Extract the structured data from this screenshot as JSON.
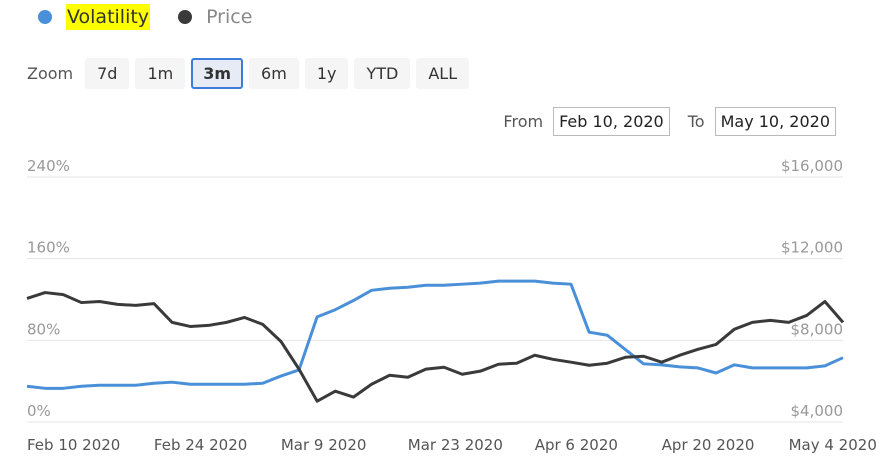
{
  "chart_data": {
    "type": "line",
    "x": [
      "2020-02-10",
      "2020-02-12",
      "2020-02-14",
      "2020-02-16",
      "2020-02-18",
      "2020-02-20",
      "2020-02-22",
      "2020-02-24",
      "2020-02-26",
      "2020-02-28",
      "2020-03-01",
      "2020-03-03",
      "2020-03-05",
      "2020-03-07",
      "2020-03-09",
      "2020-03-11",
      "2020-03-13",
      "2020-03-15",
      "2020-03-17",
      "2020-03-19",
      "2020-03-21",
      "2020-03-23",
      "2020-03-25",
      "2020-03-27",
      "2020-03-29",
      "2020-03-31",
      "2020-04-02",
      "2020-04-04",
      "2020-04-06",
      "2020-04-08",
      "2020-04-10",
      "2020-04-12",
      "2020-04-14",
      "2020-04-16",
      "2020-04-18",
      "2020-04-20",
      "2020-04-22",
      "2020-04-24",
      "2020-04-26",
      "2020-04-28",
      "2020-04-30",
      "2020-05-02",
      "2020-05-04",
      "2020-05-06",
      "2020-05-08",
      "2020-05-10"
    ],
    "series": [
      {
        "name": "Volatility",
        "color": "#4a90d9",
        "values": [
          35,
          33,
          33,
          35,
          36,
          36,
          36,
          38,
          39,
          37,
          37,
          37,
          37,
          38,
          45,
          51,
          103,
          110,
          119,
          129,
          131,
          132,
          134,
          134,
          135,
          136,
          138,
          138,
          138,
          136,
          135,
          88,
          85,
          71,
          57,
          56,
          54,
          53,
          48,
          56,
          53,
          53,
          53,
          53,
          55,
          63
        ]
      },
      {
        "name": "Price",
        "color": "#3a3a3a",
        "axis": "y2",
        "values": [
          10050,
          10340,
          10240,
          9850,
          9900,
          9760,
          9710,
          9800,
          8880,
          8680,
          8730,
          8880,
          9120,
          8780,
          7950,
          6590,
          5020,
          5510,
          5220,
          5850,
          6290,
          6190,
          6590,
          6680,
          6340,
          6490,
          6830,
          6880,
          7270,
          7070,
          6930,
          6780,
          6880,
          7170,
          7220,
          6930,
          7270,
          7560,
          7800,
          8540,
          8880,
          8980,
          8880,
          9220,
          9900,
          8880
        ]
      }
    ],
    "xlim": [
      "2020-02-10",
      "2020-05-10"
    ],
    "xticks": [
      {
        "value": "2020-02-10",
        "label": "Feb 10 2020"
      },
      {
        "value": "2020-02-24",
        "label": "Feb 24 2020"
      },
      {
        "value": "2020-03-09",
        "label": "Mar 9 2020"
      },
      {
        "value": "2020-03-23",
        "label": "Mar 23 2020"
      },
      {
        "value": "2020-04-06",
        "label": "Apr 6 2020"
      },
      {
        "value": "2020-04-20",
        "label": "Apr 20 2020"
      },
      {
        "value": "2020-05-04",
        "label": "May 4 2020"
      }
    ],
    "ylim": [
      0,
      240
    ],
    "yticks": [
      {
        "value": 0,
        "label": "0%"
      },
      {
        "value": 80,
        "label": "80%"
      },
      {
        "value": 160,
        "label": "160%"
      },
      {
        "value": 240,
        "label": "240%"
      }
    ],
    "y2lim": [
      4000,
      16000
    ],
    "y2ticks": [
      {
        "value": 4000,
        "label": "$4,000"
      },
      {
        "value": 8000,
        "label": "$8,000"
      },
      {
        "value": 12000,
        "label": "$12,000"
      },
      {
        "value": 16000,
        "label": "$16,000"
      }
    ],
    "grid": true
  },
  "zoom": {
    "label": "Zoom",
    "buttons": [
      "7d",
      "1m",
      "3m",
      "6m",
      "1y",
      "YTD",
      "ALL"
    ],
    "selected": 2
  },
  "range": {
    "from_label": "From",
    "from": "Feb 10, 2020",
    "to_label": "To",
    "to": "May 10, 2020"
  }
}
